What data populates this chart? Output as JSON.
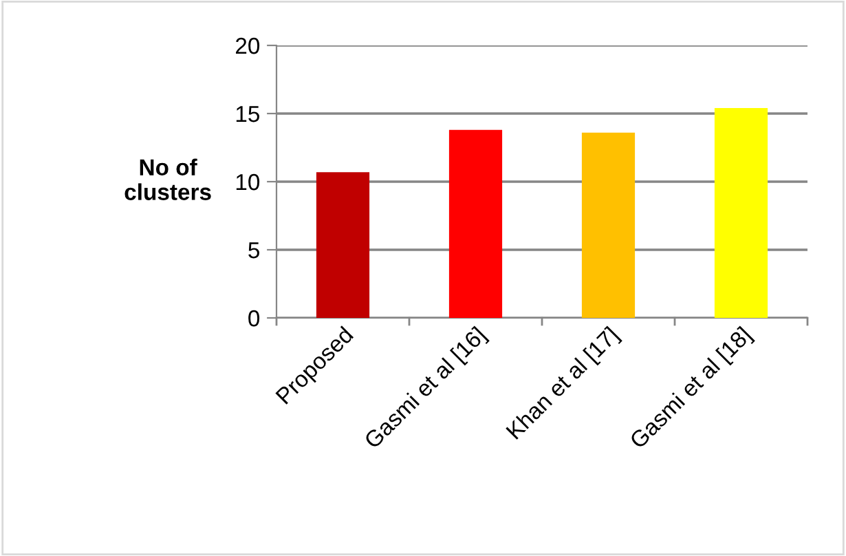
{
  "chart_data": {
    "type": "bar",
    "ylabel": "No of\nclusters",
    "categories": [
      "Proposed",
      "Gasmi et al [16]",
      "Khan et al [17]",
      "Gasmi et al [18]"
    ],
    "values": [
      10.7,
      13.8,
      13.6,
      15.4
    ],
    "colors": [
      "#c00000",
      "#ff0000",
      "#ffc000",
      "#ffff00"
    ],
    "ylim": [
      0,
      20
    ],
    "yticks": [
      0,
      5,
      10,
      15,
      20
    ],
    "grid": "y",
    "legend": false
  }
}
